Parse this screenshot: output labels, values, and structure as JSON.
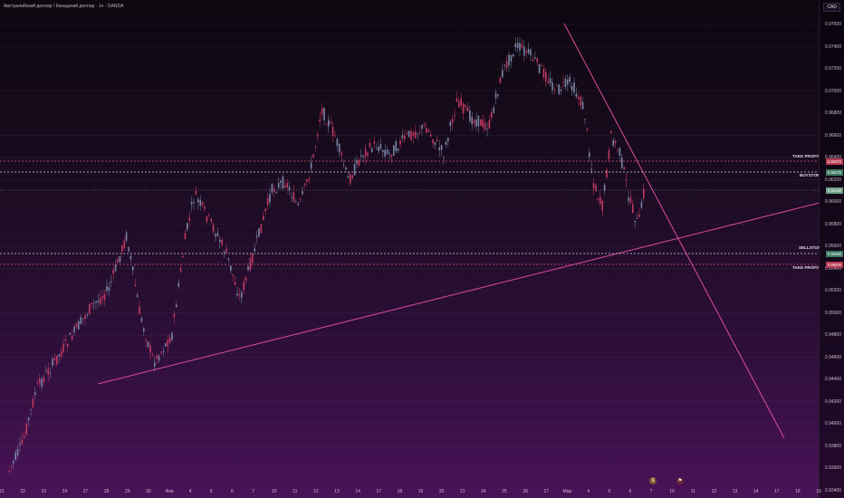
{
  "header": {
    "symbol_title": "Австралийский доллар / Канадский доллар · 1ч · OANDA",
    "currency": "CAD"
  },
  "price_axis": {
    "ticks": [
      "0.97600",
      "0.97400",
      "0.97200",
      "0.97000",
      "0.96800",
      "0.96600",
      "0.96400",
      "0.96200",
      "0.96000",
      "0.95800",
      "0.95600",
      "0.95400",
      "0.95200",
      "0.95000",
      "0.94800",
      "0.94600",
      "0.94400",
      "0.94200",
      "0.94000",
      "0.93800",
      "0.93600",
      "0.93400"
    ]
  },
  "time_axis": {
    "labels": [
      "21",
      "22",
      "23",
      "24",
      "27",
      "28",
      "29",
      "30",
      "Фев",
      "4",
      "5",
      "6",
      "7",
      "10",
      "11",
      "12",
      "13",
      "14",
      "17",
      "18",
      "19",
      "20",
      "21",
      "24",
      "25",
      "26",
      "27",
      "Мар",
      "4",
      "5",
      "6",
      "7",
      "10",
      "11",
      "12",
      "13",
      "14",
      "17",
      "18",
      "19"
    ]
  },
  "levels": {
    "take_profit_top": {
      "label": "TAKE PROFIT",
      "price": "0.96370",
      "color": "#e05470"
    },
    "buystop": {
      "label": "BUYSTOP",
      "price": "0.96275",
      "color": "#d9d2dc"
    },
    "current": {
      "price": "0.96130",
      "color": "#6f9f86"
    },
    "sellstop": {
      "label": "SELLSTOP",
      "price": "0.95490",
      "color": "#d9d2dc"
    },
    "take_profit_bottom": {
      "label": "TAKE PROFIT",
      "price": "0.95405",
      "color": "#e05470"
    }
  },
  "bottom_icons": [
    "dividend-icon",
    "event-icon"
  ],
  "colors": {
    "up": "#7a86a6",
    "down": "#c23a62",
    "trend": "#e04ca0"
  }
}
